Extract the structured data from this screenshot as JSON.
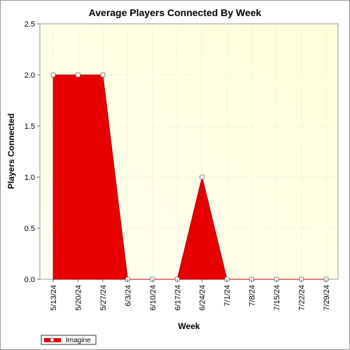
{
  "chart_data": {
    "type": "area",
    "title": "Average Players Connected By Week",
    "xlabel": "Week",
    "ylabel": "Players Connected",
    "ylim": [
      0,
      2.5
    ],
    "yticks": [
      "0.0",
      "0.5",
      "1.0",
      "1.5",
      "2.0",
      "2.5"
    ],
    "categories": [
      "5/13/24",
      "5/20/24",
      "5/27/24",
      "6/3/24",
      "6/10/24",
      "6/17/24",
      "6/24/24",
      "7/1/24",
      "7/8/24",
      "7/15/24",
      "7/22/24",
      "7/29/24"
    ],
    "series": [
      {
        "name": "Imagine",
        "values": [
          2.0,
          2.0,
          2.0,
          0,
          0,
          0,
          1.0,
          0,
          0,
          0,
          0,
          0
        ]
      }
    ],
    "grid": true,
    "legend": "bottom-left",
    "colors": {
      "series": "#e60000",
      "series_edge": "#b00000",
      "plot_bg_top": "#ffffd9",
      "plot_bg_bottom": "#fffff2",
      "grid": "#cccccc"
    }
  }
}
